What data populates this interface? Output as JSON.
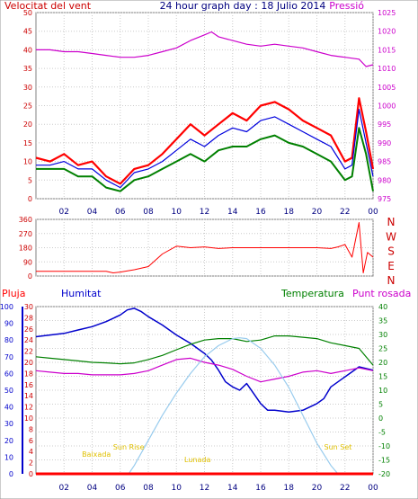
{
  "chart_data": [
    {
      "type": "line",
      "title": "24 hour graph day : 18 Julio 2014",
      "left_label": "Velocitat del vent",
      "right_label": "Pressió",
      "x_ticks": [
        "02",
        "04",
        "06",
        "08",
        "10",
        "12",
        "14",
        "16",
        "18",
        "20",
        "22",
        "00"
      ],
      "left_axis": {
        "ticks": [
          0,
          5,
          10,
          15,
          20,
          25,
          30,
          35,
          40,
          45,
          50
        ],
        "ylim": [
          0,
          50
        ]
      },
      "right_axis": {
        "ticks": [
          975,
          980,
          985,
          990,
          995,
          1000,
          1005,
          1010,
          1015,
          1020,
          1025
        ],
        "ylim": [
          975,
          1025
        ]
      },
      "series": [
        {
          "key": "gust",
          "color": "#ff0000",
          "x": [
            0,
            1,
            2,
            3,
            4,
            5,
            6,
            7,
            8,
            9,
            10,
            11,
            12,
            13,
            14,
            15,
            16,
            17,
            18,
            19,
            20,
            21,
            22,
            22.5,
            23,
            23.5,
            24
          ],
          "y": [
            11,
            10,
            12,
            9,
            10,
            6,
            4,
            8,
            9,
            12,
            16,
            20,
            17,
            20,
            23,
            21,
            25,
            26,
            24,
            21,
            19,
            17,
            10,
            11,
            27,
            18,
            8
          ]
        },
        {
          "key": "avg",
          "color": "#0000dd",
          "x": [
            0,
            1,
            2,
            3,
            4,
            5,
            6,
            7,
            8,
            9,
            10,
            11,
            12,
            13,
            14,
            15,
            16,
            17,
            18,
            19,
            20,
            21,
            22,
            22.5,
            23,
            23.5,
            24
          ],
          "y": [
            9,
            9,
            10,
            8,
            8,
            5,
            3,
            7,
            8,
            10,
            13,
            16,
            14,
            17,
            19,
            18,
            21,
            22,
            20,
            18,
            16,
            14,
            8,
            9,
            24,
            15,
            6
          ]
        },
        {
          "key": "speed",
          "color": "#008000",
          "x": [
            0,
            1,
            2,
            3,
            4,
            5,
            6,
            7,
            8,
            9,
            10,
            11,
            12,
            13,
            14,
            15,
            16,
            17,
            18,
            19,
            20,
            21,
            22,
            22.5,
            23,
            23.5,
            24
          ],
          "y": [
            8,
            8,
            8,
            6,
            6,
            3,
            2,
            5,
            6,
            8,
            10,
            12,
            10,
            13,
            14,
            14,
            16,
            17,
            15,
            14,
            12,
            10,
            5,
            6,
            19,
            12,
            2
          ]
        },
        {
          "key": "pressure",
          "color": "#cc00cc",
          "x": [
            0,
            1,
            2,
            3,
            4,
            5,
            6,
            7,
            8,
            9,
            10,
            11,
            12,
            12.5,
            13,
            14,
            15,
            16,
            17,
            18,
            19,
            20,
            21,
            22,
            23,
            23.5,
            24
          ],
          "y": [
            1015,
            1015,
            1014.5,
            1014.5,
            1014,
            1013.5,
            1013,
            1013,
            1013.5,
            1014.5,
            1015.5,
            1017.5,
            1019,
            1019.8,
            1018.5,
            1017.5,
            1016.5,
            1016,
            1016.5,
            1016,
            1015.5,
            1014.5,
            1013.5,
            1013,
            1012.5,
            1010.5,
            1011
          ]
        }
      ]
    },
    {
      "type": "line",
      "series_name": "direction",
      "x_ticks": [
        "02",
        "04",
        "06",
        "08",
        "10",
        "12",
        "14",
        "16",
        "18",
        "20",
        "22",
        "00"
      ],
      "left_axis": {
        "ticks": [
          0,
          90,
          180,
          270,
          360
        ],
        "ylim": [
          0,
          360
        ]
      },
      "right_axis": {
        "labels": [
          "N",
          "W",
          "S",
          "E",
          "N"
        ]
      },
      "series": [
        {
          "key": "direction",
          "color": "#ff0000",
          "x": [
            0,
            1,
            2,
            3,
            4,
            5,
            5.5,
            6,
            7,
            8,
            9,
            10,
            11,
            12,
            13,
            14,
            15,
            16,
            17,
            18,
            19,
            20,
            21,
            21.5,
            22,
            22.5,
            23,
            23.3,
            23.6,
            24
          ],
          "y": [
            30,
            30,
            30,
            30,
            30,
            30,
            20,
            25,
            40,
            60,
            140,
            190,
            180,
            185,
            175,
            180,
            180,
            180,
            180,
            180,
            180,
            180,
            175,
            185,
            200,
            120,
            340,
            20,
            150,
            120
          ]
        }
      ]
    },
    {
      "type": "line",
      "labels": {
        "rain": "Pluja",
        "humidity": "Humitat",
        "temperature": "Temperatura",
        "dewpoint": "Punt rosada"
      },
      "x_ticks": [
        "02",
        "04",
        "06",
        "08",
        "10",
        "12",
        "14",
        "16",
        "18",
        "20",
        "22",
        "00"
      ],
      "axes": {
        "rain": {
          "ticks": [
            0,
            2,
            4,
            6,
            8,
            10,
            12,
            14,
            16,
            18,
            20,
            22,
            24,
            26,
            28,
            30
          ],
          "ylim": [
            0,
            30
          ]
        },
        "humidity": {
          "ticks": [
            0,
            10,
            20,
            30,
            40,
            50,
            60,
            70,
            80,
            90,
            100
          ],
          "ylim": [
            0,
            100
          ]
        },
        "temperature": {
          "ticks": [
            -20,
            -15,
            -10,
            -5,
            0,
            5,
            10,
            15,
            20,
            25,
            30,
            35,
            40
          ],
          "ylim": [
            -20,
            40
          ]
        }
      },
      "annotations": [
        {
          "text": "Baixada",
          "x": 4.3
        },
        {
          "text": "Sun Rise",
          "x": 6.6
        },
        {
          "text": "Lunada",
          "x": 11.5
        },
        {
          "text": "Sun Set",
          "x": 21.5
        }
      ],
      "series": [
        {
          "key": "humidity",
          "axis": "humidity",
          "color": "#0000cc",
          "x": [
            0,
            1,
            2,
            3,
            4,
            5,
            6,
            6.5,
            7,
            7.5,
            8,
            9,
            10,
            11,
            12,
            12.5,
            13,
            13.5,
            14,
            14.5,
            15,
            15.5,
            16,
            16.5,
            17,
            18,
            19,
            20,
            20.5,
            21,
            22,
            23,
            24
          ],
          "y": [
            82,
            83,
            84,
            86,
            88,
            91,
            95,
            98,
            99,
            97,
            94,
            89,
            83,
            78,
            72,
            68,
            62,
            55,
            52,
            50,
            54,
            48,
            42,
            38,
            38,
            37,
            38,
            42,
            45,
            52,
            58,
            64,
            62
          ]
        },
        {
          "key": "temperature",
          "axis": "temperature",
          "color": "#008000",
          "x": [
            0,
            1,
            2,
            3,
            4,
            5,
            6,
            7,
            8,
            9,
            10,
            11,
            12,
            13,
            14,
            15,
            16,
            17,
            18,
            19,
            20,
            21,
            22,
            23,
            24
          ],
          "y": [
            22,
            21.5,
            21,
            20.5,
            20,
            19.8,
            19.5,
            19.8,
            21,
            22.5,
            24.5,
            26.5,
            28,
            28.5,
            28.5,
            27.5,
            28,
            29.5,
            29.5,
            29,
            28.5,
            27,
            26,
            25,
            19
          ]
        },
        {
          "key": "dewpoint",
          "axis": "temperature",
          "color": "#cc00cc",
          "x": [
            0,
            1,
            2,
            3,
            4,
            5,
            6,
            7,
            8,
            9,
            10,
            11,
            12,
            13,
            14,
            15,
            16,
            17,
            18,
            19,
            20,
            21,
            22,
            23,
            24
          ],
          "y": [
            17,
            16.5,
            16,
            16,
            15.5,
            15.5,
            15.5,
            16,
            17,
            19,
            21,
            21.5,
            20,
            19,
            17.5,
            15,
            13,
            14,
            15,
            16.5,
            17,
            16,
            17,
            18,
            17
          ]
        },
        {
          "key": "solar",
          "axis": "temperature",
          "color": "#99ccee",
          "x": [
            6.6,
            7,
            8,
            9,
            10,
            11,
            12,
            13,
            14,
            14.5,
            15,
            16,
            17,
            18,
            19,
            20,
            21,
            21.5
          ],
          "y": [
            -20,
            -17,
            -8,
            1,
            9,
            16,
            22,
            26,
            28.5,
            28.8,
            28.5,
            25,
            19,
            11,
            1,
            -9,
            -17,
            -20
          ]
        },
        {
          "key": "rain",
          "axis": "rain",
          "color": "#ff0000",
          "x": [
            0,
            24
          ],
          "y": [
            0,
            0
          ]
        }
      ]
    }
  ]
}
